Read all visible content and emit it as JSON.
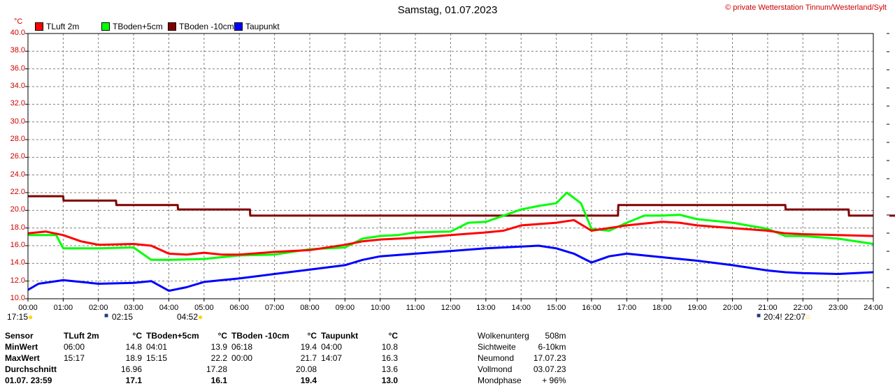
{
  "header": {
    "title": "Samstag, 01.07.2023",
    "copyright": "© private Wetterstation Tinnum/Westerland/Sylt",
    "unit": "°C"
  },
  "legend": [
    {
      "name": "TLuft 2m",
      "color": "#ff0000"
    },
    {
      "name": "TBoden+5cm",
      "color": "#00ff00"
    },
    {
      "name": "TBoden -10cm",
      "color": "#800000"
    },
    {
      "name": "Taupunkt",
      "color": "#0000ff"
    }
  ],
  "chart_data": {
    "type": "line",
    "title": "Samstag, 01.07.2023",
    "ylabel": "°C",
    "ylim": [
      10,
      40
    ],
    "yticks": [
      "10.0",
      "12.0",
      "14.0",
      "16.0",
      "18.0",
      "20.0",
      "22.0",
      "24.0",
      "26.0",
      "28.0",
      "30.0",
      "32.0",
      "34.0",
      "36.0",
      "38.0",
      "40.0"
    ],
    "xlim": [
      0,
      24
    ],
    "xticks": [
      "00:00",
      "01:00",
      "02:00",
      "03:00",
      "04:00",
      "05:00",
      "06:00",
      "07:00",
      "08:00",
      "09:00",
      "10:00",
      "11:00",
      "12:00",
      "13:00",
      "14:00",
      "15:00",
      "16:00",
      "17:00",
      "18:00",
      "19:00",
      "20:00",
      "21:00",
      "22:00",
      "23:00",
      "24:00"
    ],
    "grid": true,
    "legend_position": "top-left",
    "series": [
      {
        "name": "TLuft 2m",
        "color": "#ff0000",
        "x": [
          0,
          0.5,
          1,
          1.5,
          2,
          3,
          3.5,
          4,
          4.5,
          5,
          5.5,
          6,
          7,
          8,
          9,
          9.5,
          10,
          11,
          12,
          13,
          13.5,
          14,
          15,
          15.5,
          16,
          17,
          17.5,
          18,
          18.5,
          19,
          20,
          21,
          21.5,
          22,
          23,
          24
        ],
        "y": [
          17.4,
          17.6,
          17.2,
          16.5,
          16.1,
          16.2,
          16.0,
          15.1,
          15.0,
          15.2,
          15.0,
          15.0,
          15.3,
          15.5,
          16.1,
          16.5,
          16.7,
          16.9,
          17.2,
          17.5,
          17.7,
          18.3,
          18.6,
          18.9,
          17.7,
          18.3,
          18.5,
          18.7,
          18.6,
          18.3,
          18.0,
          17.7,
          17.4,
          17.3,
          17.2,
          17.1
        ]
      },
      {
        "name": "TBoden+5cm",
        "color": "#00ff00",
        "x": [
          0,
          0.8,
          1,
          2,
          3,
          3.5,
          4,
          5,
          6,
          7,
          8,
          9,
          9.5,
          10,
          10.5,
          11,
          12,
          12.5,
          13,
          14,
          14.5,
          15,
          15.3,
          15.7,
          16,
          16.5,
          17,
          17.5,
          18,
          18.5,
          19,
          20,
          21,
          21.5,
          22,
          23,
          24
        ],
        "y": [
          17.2,
          17.2,
          15.7,
          15.7,
          15.8,
          14.4,
          14.4,
          14.5,
          14.9,
          15.0,
          15.6,
          15.8,
          16.8,
          17.1,
          17.2,
          17.5,
          17.6,
          18.6,
          18.7,
          20.1,
          20.5,
          20.8,
          22.0,
          20.8,
          17.9,
          17.7,
          18.6,
          19.4,
          19.4,
          19.5,
          19.0,
          18.6,
          17.9,
          17.1,
          17.1,
          16.8,
          16.2
        ]
      },
      {
        "name": "TBoden -10cm",
        "color": "#800000",
        "x": [
          0,
          1,
          1.01,
          2.5,
          2.51,
          4.25,
          4.26,
          6.3,
          6.31,
          16.75,
          16.76,
          21.5,
          21.51,
          23.3,
          23.31,
          24
        ],
        "y": [
          21.6,
          21.6,
          21.1,
          21.1,
          20.6,
          20.6,
          20.1,
          20.1,
          19.4,
          19.4,
          20.6,
          20.6,
          20.1,
          20.1,
          19.4,
          19.4
        ]
      },
      {
        "name": "Taupunkt",
        "color": "#0000ff",
        "x": [
          0,
          0.3,
          1,
          1.5,
          2,
          3,
          3.5,
          4,
          4.5,
          5,
          6,
          7,
          8,
          9,
          9.5,
          10,
          11,
          12,
          13,
          14,
          14.5,
          15,
          15.5,
          16,
          16.5,
          17,
          18,
          19,
          20,
          21,
          21.5,
          22,
          23,
          24
        ],
        "y": [
          11.0,
          11.7,
          12.1,
          11.9,
          11.7,
          11.8,
          12.0,
          10.9,
          11.3,
          11.9,
          12.3,
          12.8,
          13.3,
          13.8,
          14.4,
          14.8,
          15.1,
          15.4,
          15.7,
          15.9,
          16.0,
          15.7,
          15.1,
          14.1,
          14.8,
          15.1,
          14.7,
          14.3,
          13.8,
          13.2,
          13.0,
          12.9,
          12.8,
          13.0
        ]
      }
    ]
  },
  "events": [
    {
      "time": "17:15"
    },
    {
      "time": "02:15"
    },
    {
      "time": "04:52"
    },
    {
      "time": "20:4!"
    },
    {
      "time": "22:07"
    }
  ],
  "stats": {
    "headers": [
      "Sensor",
      "TLuft 2m",
      "°C",
      "TBoden+5cm",
      "°C",
      "TBoden -10cm",
      "°C",
      "Taupunkt",
      "°C"
    ],
    "rows": [
      {
        "label": "MinWert",
        "cells": [
          "06:00",
          "14.8",
          "04:01",
          "13.9",
          "06:18",
          "19.4",
          "04:00",
          "10.8"
        ]
      },
      {
        "label": "MaxWert",
        "cells": [
          "15:17",
          "18.9",
          "15:15",
          "22.2",
          "00:00",
          "21.7",
          "14:07",
          "16.3"
        ]
      },
      {
        "label": "Durchschnitt",
        "cells": [
          "",
          "16.96",
          "",
          "17.28",
          "",
          "20.08",
          "",
          "13.6"
        ]
      },
      {
        "label": "01.07. 23:59",
        "cells": [
          "",
          "17.1",
          "",
          "16.1",
          "",
          "19.4",
          "",
          "13.0"
        ]
      }
    ]
  },
  "astro": [
    {
      "label": "Wolkenunterg",
      "value": "508m"
    },
    {
      "label": "Sichtweite",
      "value": "6-10km"
    },
    {
      "label": "Neumond",
      "value": "17.07.23"
    },
    {
      "label": "Vollmond",
      "value": "03.07.23"
    },
    {
      "label": "Mondphase",
      "value": "+ 96%"
    }
  ]
}
